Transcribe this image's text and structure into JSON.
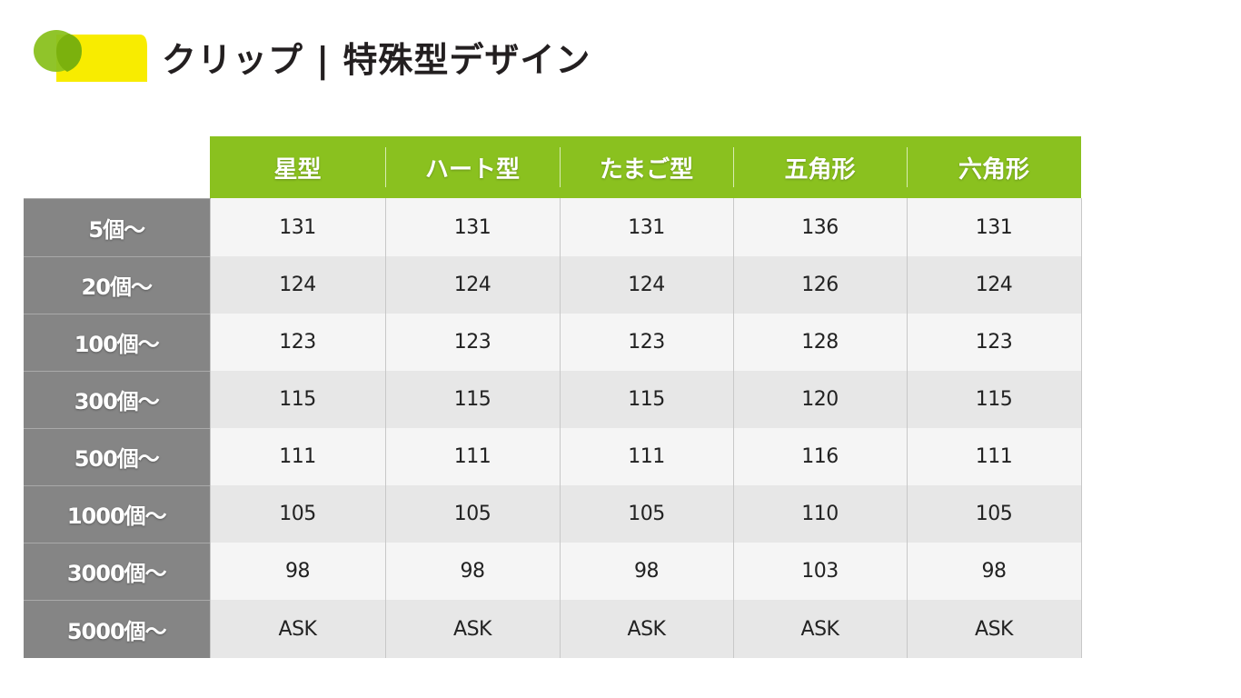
{
  "title": "クリップ | 特殊型デザイン",
  "colors": {
    "accent_green": "#8ac11f",
    "accent_yellow": "#f8ec00",
    "row_header_gray": "#858585"
  },
  "columns": [
    "星型",
    "ハート型",
    "たまご型",
    "五角形",
    "六角形"
  ],
  "rows": [
    {
      "label": "5個〜",
      "values": [
        "131",
        "131",
        "131",
        "136",
        "131"
      ]
    },
    {
      "label": "20個〜",
      "values": [
        "124",
        "124",
        "124",
        "126",
        "124"
      ]
    },
    {
      "label": "100個〜",
      "values": [
        "123",
        "123",
        "123",
        "128",
        "123"
      ]
    },
    {
      "label": "300個〜",
      "values": [
        "115",
        "115",
        "115",
        "120",
        "115"
      ]
    },
    {
      "label": "500個〜",
      "values": [
        "111",
        "111",
        "111",
        "116",
        "111"
      ]
    },
    {
      "label": "1000個〜",
      "values": [
        "105",
        "105",
        "105",
        "110",
        "105"
      ]
    },
    {
      "label": "3000個〜",
      "values": [
        "98",
        "98",
        "98",
        "103",
        "98"
      ]
    },
    {
      "label": "5000個〜",
      "values": [
        "ASK",
        "ASK",
        "ASK",
        "ASK",
        "ASK"
      ]
    }
  ]
}
